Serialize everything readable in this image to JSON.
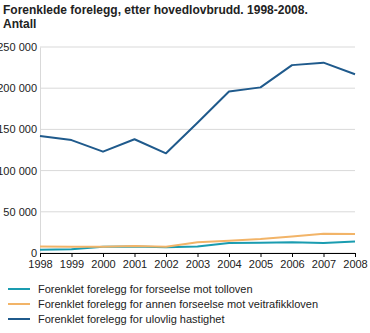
{
  "chart_data": {
    "type": "line",
    "title": "Forenklede forelegg, etter hovedlovbrudd. 1998-2008.",
    "subtitle": "Antall",
    "categories": [
      "1998",
      "1999",
      "2000",
      "2001",
      "2002",
      "2003",
      "2004",
      "2005",
      "2006",
      "2007",
      "2008"
    ],
    "series": [
      {
        "name": "Forenklet forelegg for forseelse mot tolloven",
        "color": "#1a9cb0",
        "values": [
          4000,
          4500,
          7500,
          8000,
          7000,
          8000,
          12000,
          12500,
          13000,
          12000,
          14000
        ]
      },
      {
        "name": "Forenklet forelegg for annen forseelse mot veitrafikkloven",
        "color": "#f2b468",
        "values": [
          8000,
          7500,
          7500,
          8500,
          7500,
          13000,
          15000,
          17000,
          20000,
          23500,
          23000
        ]
      },
      {
        "name": "Forenklet forelegg for ulovlig hastighet",
        "color": "#1f5a8c",
        "values": [
          142000,
          137000,
          123000,
          138000,
          121000,
          158000,
          196000,
          201000,
          228000,
          231000,
          217000
        ]
      }
    ],
    "ylim": [
      0,
      250000
    ],
    "yticks": [
      0,
      {
        "value": 50000,
        "label": "50 000"
      },
      {
        "value": 100000,
        "label": "100 000"
      },
      {
        "value": 150000,
        "label": "150 000"
      },
      {
        "value": 200000,
        "label": "200 000"
      },
      {
        "value": 250000,
        "label": "250 000"
      }
    ],
    "grid": true
  }
}
